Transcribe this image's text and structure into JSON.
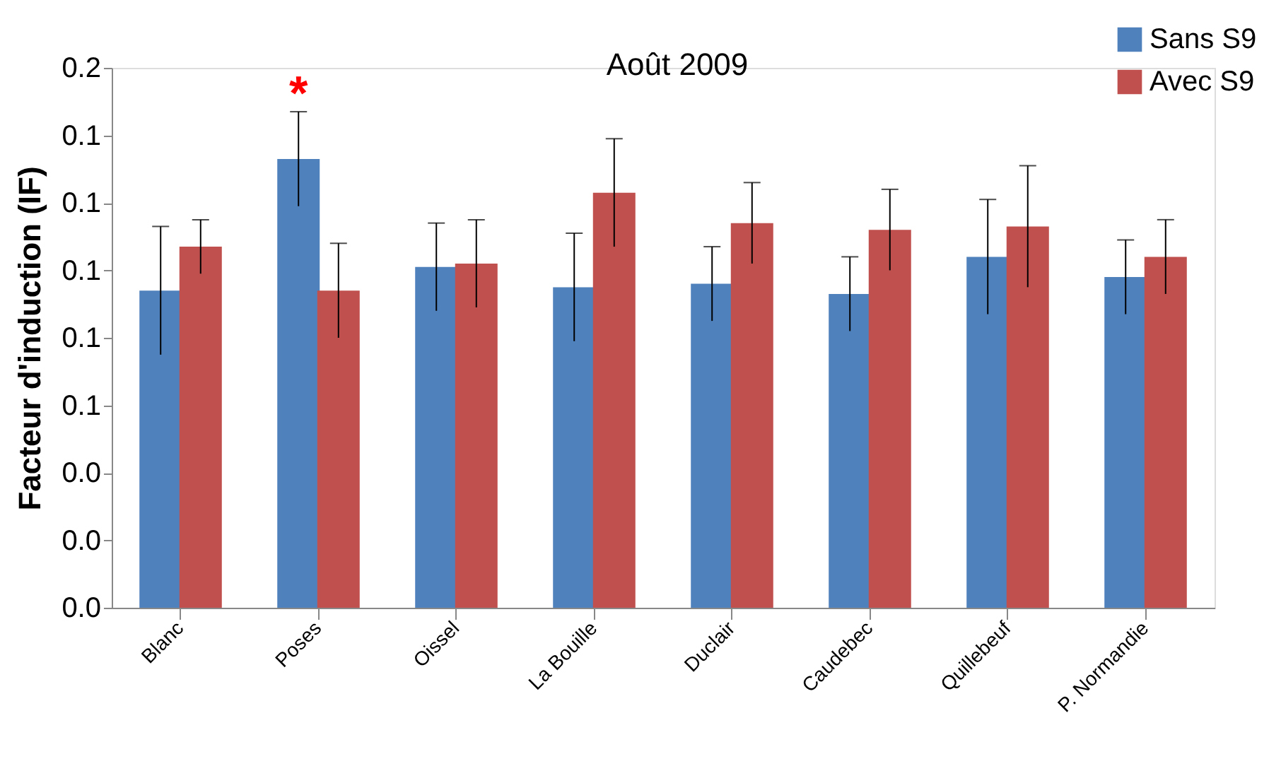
{
  "chart_data": {
    "type": "bar",
    "title": "Août 2009",
    "ylabel": "Facteur d'induction (IF)",
    "categories": [
      "Blanc",
      "Poses",
      "Oissel",
      "La Bouille",
      "Duclair",
      "Caudebec",
      "Quillebeuf",
      "P. Normandie"
    ],
    "series": [
      {
        "name": "Sans S9",
        "color": "#4f81bd",
        "values": [
          0.094,
          0.133,
          0.101,
          0.095,
          0.096,
          0.093,
          0.104,
          0.098
        ],
        "errors": [
          0.019,
          0.014,
          0.013,
          0.016,
          0.011,
          0.011,
          0.017,
          0.011
        ]
      },
      {
        "name": "Avec S9",
        "color": "#c0504d",
        "values": [
          0.107,
          0.094,
          0.102,
          0.123,
          0.114,
          0.112,
          0.113,
          0.104
        ],
        "errors": [
          0.008,
          0.014,
          0.013,
          0.016,
          0.012,
          0.012,
          0.018,
          0.011
        ]
      }
    ],
    "ylim": [
      0,
      0.16
    ],
    "yticks": [
      {
        "value": 0,
        "label": "0.0"
      },
      {
        "value": 0.02,
        "label": "0.0"
      },
      {
        "value": 0.04,
        "label": "0.0"
      },
      {
        "value": 0.06,
        "label": "0.1"
      },
      {
        "value": 0.08,
        "label": "0.1"
      },
      {
        "value": 0.1,
        "label": "0.1"
      },
      {
        "value": 0.12,
        "label": "0.1"
      },
      {
        "value": 0.14,
        "label": "0.1"
      },
      {
        "value": 0.16,
        "label": "0.2"
      }
    ],
    "annotations": [
      {
        "text": "*",
        "x": "Poses",
        "y": 0.133
      }
    ],
    "legend": "top right",
    "grid": false
  }
}
